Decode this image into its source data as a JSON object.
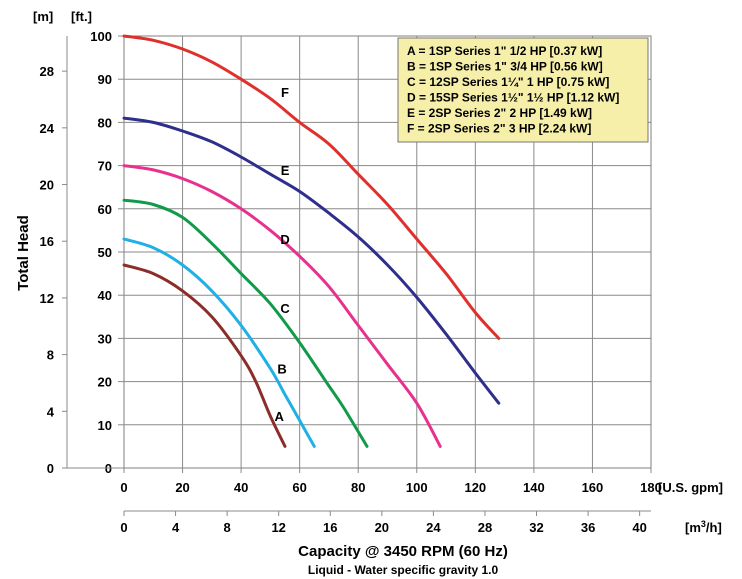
{
  "chart_data": {
    "type": "line",
    "xlabel": "Capacity @ 3450 RPM (60 Hz)",
    "subtitle": "Liquid - Water specific gravity 1.0",
    "ylabel": "Total Head",
    "x_primary": {
      "unit": "[U.S. gpm]",
      "ticks": [
        0,
        20,
        40,
        60,
        80,
        100,
        120,
        140,
        160,
        180
      ],
      "range": [
        0,
        180
      ]
    },
    "x_secondary": {
      "unit": "[m3/h]",
      "ticks": [
        0,
        4,
        8,
        12,
        16,
        20,
        24,
        28,
        32,
        36,
        40
      ],
      "range": [
        0,
        40.88
      ]
    },
    "y_primary": {
      "unit": "[ft.]",
      "ticks": [
        0,
        10,
        20,
        30,
        40,
        50,
        60,
        70,
        80,
        90,
        100
      ],
      "range": [
        0,
        100
      ]
    },
    "y_secondary": {
      "unit": "[m]",
      "ticks": [
        0,
        4,
        8,
        12,
        16,
        20,
        24,
        28
      ],
      "range": [
        0,
        30.48
      ]
    },
    "grid": true,
    "legend_position": "top-right",
    "legend": [
      "A = 1SP Series 1\" 1/2 HP [0.37 kW]",
      "B = 1SP Series 1\" 3/4 HP [0.56 kW]",
      "C = 12SP Series 1¼\" 1 HP [0.75 kW]",
      "D = 15SP Series 1½\" 1½ HP [1.12 kW]",
      "E = 2SP Series 2\" 2 HP [1.49 kW]",
      "F = 2SP Series 2\" 3 HP [2.24 kW]"
    ],
    "series": [
      {
        "name": "A",
        "color": "#8b2e2a",
        "label_at": [
          53,
          12
        ],
        "x": [
          0,
          10,
          20,
          30,
          40,
          45,
          50,
          55
        ],
        "y": [
          47,
          45,
          41,
          35,
          26,
          20,
          12,
          5
        ]
      },
      {
        "name": "B",
        "color": "#1fb0e6",
        "label_at": [
          54,
          23
        ],
        "x": [
          0,
          10,
          20,
          30,
          40,
          50,
          55,
          60,
          65
        ],
        "y": [
          53,
          51,
          47,
          41,
          33,
          23,
          17,
          11,
          5
        ]
      },
      {
        "name": "C",
        "color": "#119a4a",
        "label_at": [
          55,
          37
        ],
        "x": [
          0,
          10,
          20,
          30,
          40,
          50,
          60,
          70,
          75,
          83
        ],
        "y": [
          62,
          61,
          58,
          52,
          45,
          38,
          29,
          19,
          14,
          5
        ]
      },
      {
        "name": "D",
        "color": "#e8318e",
        "label_at": [
          55,
          53
        ],
        "x": [
          0,
          10,
          20,
          30,
          40,
          50,
          60,
          70,
          80,
          90,
          100,
          108
        ],
        "y": [
          70,
          69,
          67,
          64,
          60,
          55,
          49,
          42,
          33,
          24,
          15,
          5
        ]
      },
      {
        "name": "E",
        "color": "#2e2e8c",
        "label_at": [
          55,
          69
        ],
        "x": [
          0,
          10,
          20,
          30,
          40,
          50,
          60,
          70,
          80,
          90,
          100,
          110,
          120,
          128
        ],
        "y": [
          81,
          80,
          78,
          75.5,
          72,
          68,
          64,
          59,
          53.5,
          47,
          39.5,
          31,
          22,
          15
        ]
      },
      {
        "name": "F",
        "color": "#e0302c",
        "label_at": [
          55,
          87
        ],
        "x": [
          0,
          10,
          20,
          30,
          40,
          50,
          60,
          70,
          80,
          90,
          100,
          110,
          120,
          128
        ],
        "y": [
          100,
          99,
          97,
          94,
          90,
          85.5,
          80,
          75,
          68,
          61,
          53,
          45,
          36,
          30
        ]
      }
    ]
  }
}
